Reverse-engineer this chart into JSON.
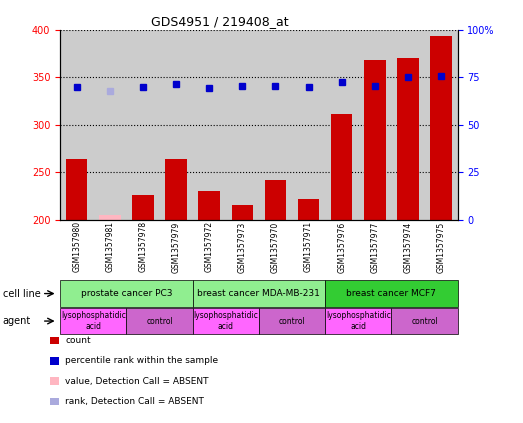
{
  "title": "GDS4951 / 219408_at",
  "samples": [
    "GSM1357980",
    "GSM1357981",
    "GSM1357978",
    "GSM1357979",
    "GSM1357972",
    "GSM1357973",
    "GSM1357970",
    "GSM1357971",
    "GSM1357976",
    "GSM1357977",
    "GSM1357974",
    "GSM1357975"
  ],
  "counts": [
    264,
    205,
    226,
    264,
    230,
    216,
    242,
    222,
    311,
    368,
    370,
    393
  ],
  "percentile_ranks": [
    70.0,
    67.5,
    70.0,
    71.5,
    69.5,
    70.5,
    70.5,
    70.0,
    72.5,
    70.5,
    75.0,
    75.5
  ],
  "absent_count_indices": [
    1
  ],
  "absent_rank_indices": [
    1
  ],
  "ylim_left": [
    200,
    400
  ],
  "ylim_right": [
    0,
    100
  ],
  "yticks_left": [
    200,
    250,
    300,
    350,
    400
  ],
  "yticks_right": [
    0,
    25,
    50,
    75,
    100
  ],
  "cell_line_groups": [
    {
      "label": "prostate cancer PC3",
      "start": 0,
      "end": 3,
      "color": "#90EE90"
    },
    {
      "label": "breast cancer MDA-MB-231",
      "start": 4,
      "end": 7,
      "color": "#90EE90"
    },
    {
      "label": "breast cancer MCF7",
      "start": 8,
      "end": 11,
      "color": "#33CC33"
    }
  ],
  "agent_groups": [
    {
      "label": "lysophosphatidic\nacid",
      "start": 0,
      "end": 1,
      "color": "#FF66FF"
    },
    {
      "label": "control",
      "start": 2,
      "end": 3,
      "color": "#CC66CC"
    },
    {
      "label": "lysophosphatidic\nacid",
      "start": 4,
      "end": 5,
      "color": "#FF66FF"
    },
    {
      "label": "control",
      "start": 6,
      "end": 7,
      "color": "#CC66CC"
    },
    {
      "label": "lysophosphatidic\nacid",
      "start": 8,
      "end": 9,
      "color": "#FF66FF"
    },
    {
      "label": "control",
      "start": 10,
      "end": 11,
      "color": "#CC66CC"
    }
  ],
  "bar_color": "#CC0000",
  "rank_color": "#0000CC",
  "absent_bar_color": "#FFB6C1",
  "absent_rank_color": "#AAAADD",
  "bar_width": 0.65,
  "background_color": "#FFFFFF",
  "sample_bg_color": "#CCCCCC",
  "legend_items": [
    {
      "label": "count",
      "color": "#CC0000"
    },
    {
      "label": "percentile rank within the sample",
      "color": "#0000CC"
    },
    {
      "label": "value, Detection Call = ABSENT",
      "color": "#FFB6C1"
    },
    {
      "label": "rank, Detection Call = ABSENT",
      "color": "#AAAADD"
    }
  ]
}
